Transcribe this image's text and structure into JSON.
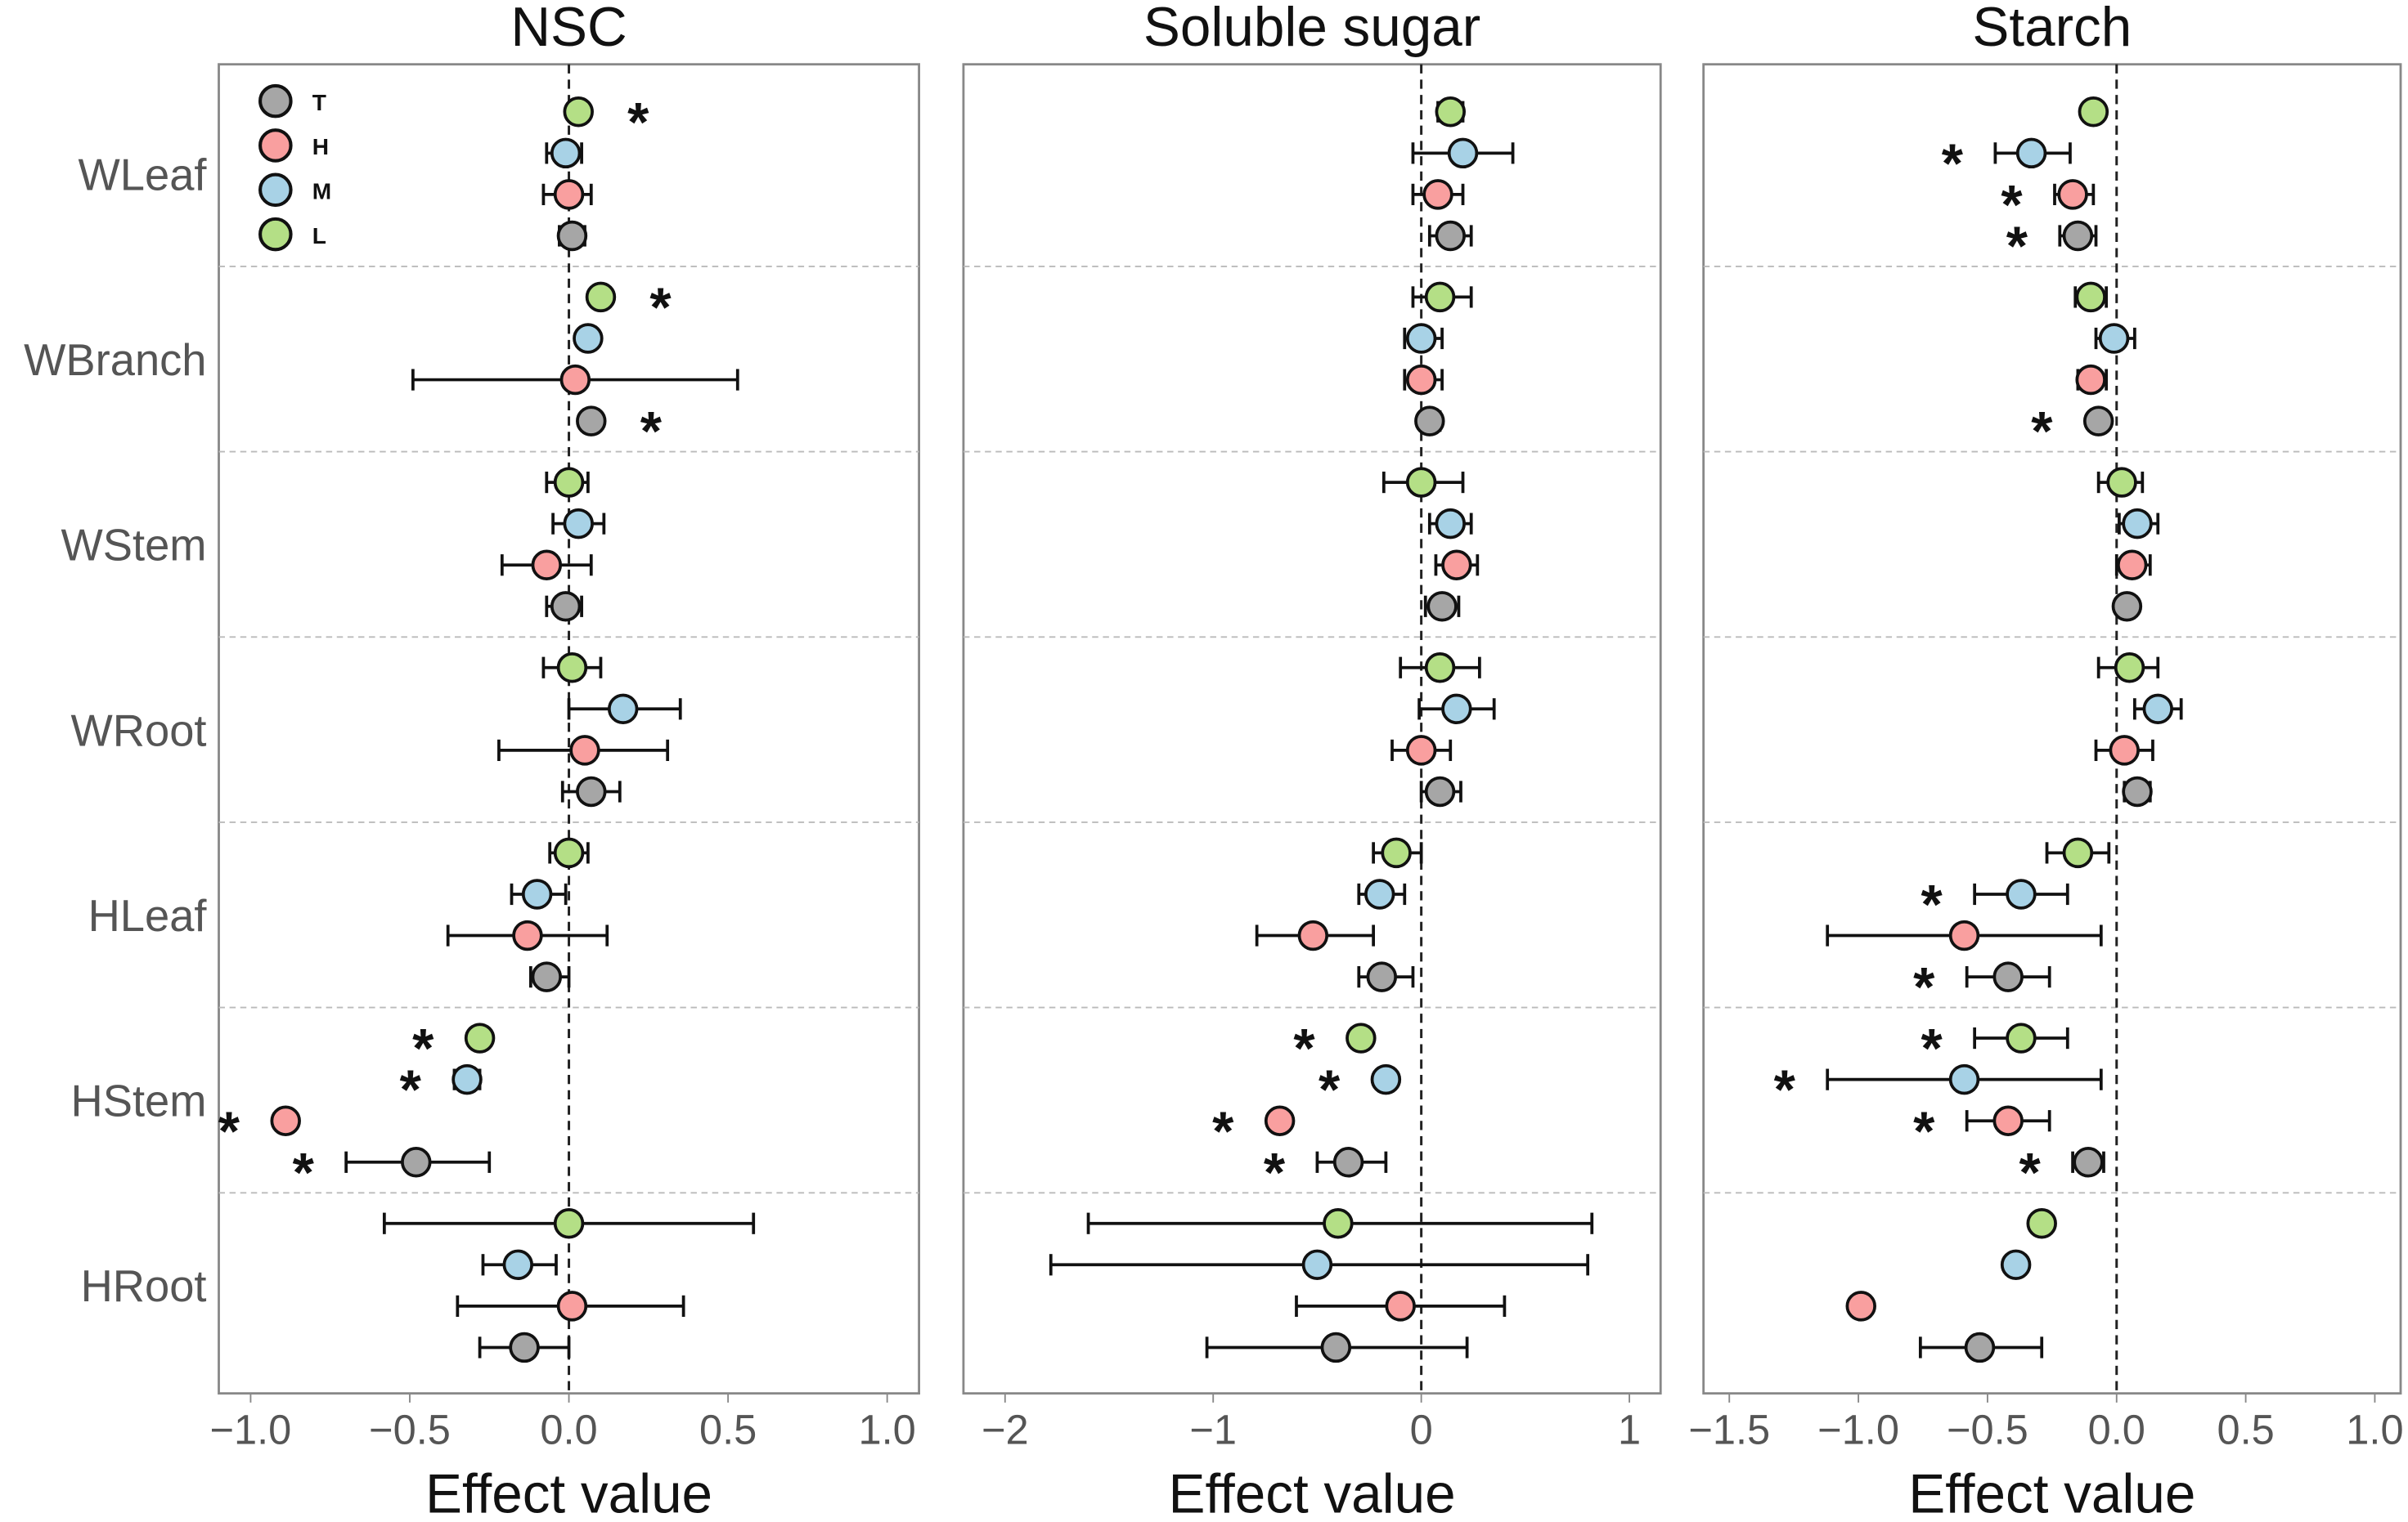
{
  "chart_data": {
    "type": "scatter",
    "subtype": "forest-plot",
    "groups": [
      "T",
      "H",
      "M",
      "L"
    ],
    "colors": {
      "T": "#a6a6a6",
      "H": "#f99f9f",
      "M": "#a8d2e6",
      "L": "#b4df86"
    },
    "rows": [
      "WLeaf",
      "WBranch",
      "WStem",
      "WRoot",
      "HLeaf",
      "HStem",
      "HRoot"
    ],
    "xlabel": "Effect value",
    "significance_marker": "*",
    "panels": [
      {
        "title": "NSC",
        "xlim": [
          -1.1,
          1.1
        ],
        "ticks": [
          -1.0,
          -0.5,
          0.0,
          0.5,
          1.0
        ],
        "tick_labels": [
          "−1.0",
          "−0.5",
          "0.0",
          "0.5",
          "1.0"
        ],
        "data": {
          "WLeaf": {
            "L": [
              0.03,
              0.02,
              0.04,
              true
            ],
            "M": [
              -0.01,
              -0.07,
              0.04,
              false
            ],
            "H": [
              0.0,
              -0.08,
              0.07,
              false
            ],
            "T": [
              0.01,
              -0.03,
              0.05,
              false
            ]
          },
          "WBranch": {
            "L": [
              0.1,
              0.09,
              0.11,
              true
            ],
            "M": [
              0.06,
              0.05,
              0.07,
              false
            ],
            "H": [
              0.02,
              -0.49,
              0.53,
              false
            ],
            "T": [
              0.07,
              0.06,
              0.08,
              true
            ]
          },
          "WStem": {
            "L": [
              0.0,
              -0.07,
              0.06,
              false
            ],
            "M": [
              0.03,
              -0.05,
              0.11,
              false
            ],
            "H": [
              -0.07,
              -0.21,
              0.07,
              false
            ],
            "T": [
              -0.01,
              -0.07,
              0.04,
              false
            ]
          },
          "WRoot": {
            "L": [
              0.01,
              -0.08,
              0.1,
              false
            ],
            "M": [
              0.17,
              0.0,
              0.35,
              false
            ],
            "H": [
              0.05,
              -0.22,
              0.31,
              false
            ],
            "T": [
              0.07,
              -0.02,
              0.16,
              false
            ]
          },
          "HLeaf": {
            "L": [
              0.0,
              -0.06,
              0.06,
              false
            ],
            "M": [
              -0.1,
              -0.18,
              -0.01,
              false
            ],
            "H": [
              -0.13,
              -0.38,
              0.12,
              false
            ],
            "T": [
              -0.07,
              -0.12,
              0.0,
              false
            ]
          },
          "HStem": {
            "L": [
              -0.28,
              -0.29,
              -0.27,
              true
            ],
            "M": [
              -0.32,
              -0.36,
              -0.28,
              true
            ],
            "H": [
              -0.89,
              -0.9,
              -0.88,
              true
            ],
            "T": [
              -0.48,
              -0.7,
              -0.25,
              true
            ]
          },
          "HRoot": {
            "L": [
              0.0,
              -0.58,
              0.58,
              false
            ],
            "M": [
              -0.16,
              -0.27,
              -0.04,
              false
            ],
            "H": [
              0.01,
              -0.35,
              0.36,
              false
            ],
            "T": [
              -0.14,
              -0.28,
              0.0,
              false
            ]
          }
        }
      },
      {
        "title": "Soluble sugar",
        "xlim": [
          -2.2,
          1.15
        ],
        "ticks": [
          -2,
          -1,
          0,
          1
        ],
        "tick_labels": [
          "−2",
          "−1",
          "0",
          "1"
        ],
        "data": {
          "WLeaf": {
            "L": [
              0.14,
              0.08,
              0.2,
              false
            ],
            "M": [
              0.2,
              -0.04,
              0.44,
              false
            ],
            "H": [
              0.08,
              -0.04,
              0.2,
              false
            ],
            "T": [
              0.14,
              0.04,
              0.24,
              false
            ]
          },
          "WBranch": {
            "L": [
              0.09,
              -0.04,
              0.24,
              false
            ],
            "M": [
              0.0,
              -0.08,
              0.1,
              false
            ],
            "H": [
              0.0,
              -0.08,
              0.1,
              false
            ],
            "T": [
              0.04,
              0.0,
              0.09,
              false
            ]
          },
          "WStem": {
            "L": [
              0.0,
              -0.18,
              0.2,
              false
            ],
            "M": [
              0.14,
              0.04,
              0.24,
              false
            ],
            "H": [
              0.17,
              0.07,
              0.27,
              false
            ],
            "T": [
              0.1,
              0.02,
              0.18,
              false
            ]
          },
          "WRoot": {
            "L": [
              0.09,
              -0.1,
              0.28,
              false
            ],
            "M": [
              0.17,
              -0.01,
              0.35,
              false
            ],
            "H": [
              0.0,
              -0.14,
              0.14,
              false
            ],
            "T": [
              0.09,
              0.0,
              0.19,
              false
            ]
          },
          "HLeaf": {
            "L": [
              -0.12,
              -0.23,
              0.0,
              false
            ],
            "M": [
              -0.2,
              -0.3,
              -0.08,
              false
            ],
            "H": [
              -0.52,
              -0.79,
              -0.23,
              false
            ],
            "T": [
              -0.19,
              -0.3,
              -0.04,
              false
            ]
          },
          "HStem": {
            "L": [
              -0.29,
              -0.3,
              -0.28,
              true
            ],
            "M": [
              -0.17,
              -0.18,
              -0.16,
              true
            ],
            "H": [
              -0.68,
              -0.69,
              -0.67,
              true
            ],
            "T": [
              -0.35,
              -0.5,
              -0.17,
              true
            ]
          },
          "HRoot": {
            "L": [
              -0.4,
              -1.6,
              0.82,
              false
            ],
            "M": [
              -0.5,
              -1.78,
              0.8,
              false
            ],
            "H": [
              -0.1,
              -0.6,
              0.4,
              false
            ],
            "T": [
              -0.41,
              -1.03,
              0.22,
              false
            ]
          }
        }
      },
      {
        "title": "Starch",
        "xlim": [
          -1.6,
          1.1
        ],
        "ticks": [
          -1.5,
          -1.0,
          -0.5,
          0.0,
          0.5,
          1.0
        ],
        "tick_labels": [
          "−1.5",
          "−1.0",
          "−0.5",
          "0.0",
          "0.5",
          "1.0"
        ],
        "data": {
          "WLeaf": {
            "L": [
              -0.09,
              -0.1,
              -0.08,
              false
            ],
            "M": [
              -0.33,
              -0.47,
              -0.18,
              true
            ],
            "H": [
              -0.17,
              -0.24,
              -0.09,
              true
            ],
            "T": [
              -0.15,
              -0.22,
              -0.08,
              true
            ]
          },
          "WBranch": {
            "L": [
              -0.1,
              -0.16,
              -0.04,
              false
            ],
            "M": [
              -0.01,
              -0.08,
              0.07,
              false
            ],
            "H": [
              -0.1,
              -0.15,
              -0.04,
              false
            ],
            "T": [
              -0.07,
              -0.08,
              -0.06,
              true
            ]
          },
          "WStem": {
            "L": [
              0.02,
              -0.07,
              0.1,
              false
            ],
            "M": [
              0.08,
              0.01,
              0.16,
              false
            ],
            "H": [
              0.06,
              0.0,
              0.13,
              false
            ],
            "T": [
              0.04,
              0.03,
              0.05,
              false
            ]
          },
          "WRoot": {
            "L": [
              0.05,
              -0.07,
              0.16,
              false
            ],
            "M": [
              0.16,
              0.07,
              0.25,
              false
            ],
            "H": [
              0.03,
              -0.08,
              0.14,
              false
            ],
            "T": [
              0.08,
              0.03,
              0.13,
              false
            ]
          },
          "HLeaf": {
            "L": [
              -0.15,
              -0.27,
              -0.03,
              false
            ],
            "M": [
              -0.37,
              -0.55,
              -0.19,
              true
            ],
            "H": [
              -0.59,
              -1.12,
              -0.06,
              false
            ],
            "T": [
              -0.42,
              -0.58,
              -0.26,
              true
            ]
          },
          "HStem": {
            "L": [
              -0.37,
              -0.55,
              -0.19,
              true
            ],
            "M": [
              -0.59,
              -1.12,
              -0.06,
              true
            ],
            "H": [
              -0.42,
              -0.58,
              -0.26,
              true
            ],
            "T": [
              -0.11,
              -0.17,
              -0.05,
              true
            ]
          },
          "HRoot": {
            "L": [
              -0.29,
              -0.3,
              -0.28,
              false
            ],
            "M": [
              -0.39,
              -0.4,
              -0.38,
              false
            ],
            "H": [
              -0.99,
              -1.0,
              -0.98,
              false
            ],
            "T": [
              -0.53,
              -0.76,
              -0.29,
              false
            ]
          }
        }
      }
    ],
    "value_format": "[estimate, ci_low, ci_high, significant]",
    "legend": {
      "position": "top-left",
      "entries": [
        "T",
        "H",
        "M",
        "L"
      ]
    }
  }
}
